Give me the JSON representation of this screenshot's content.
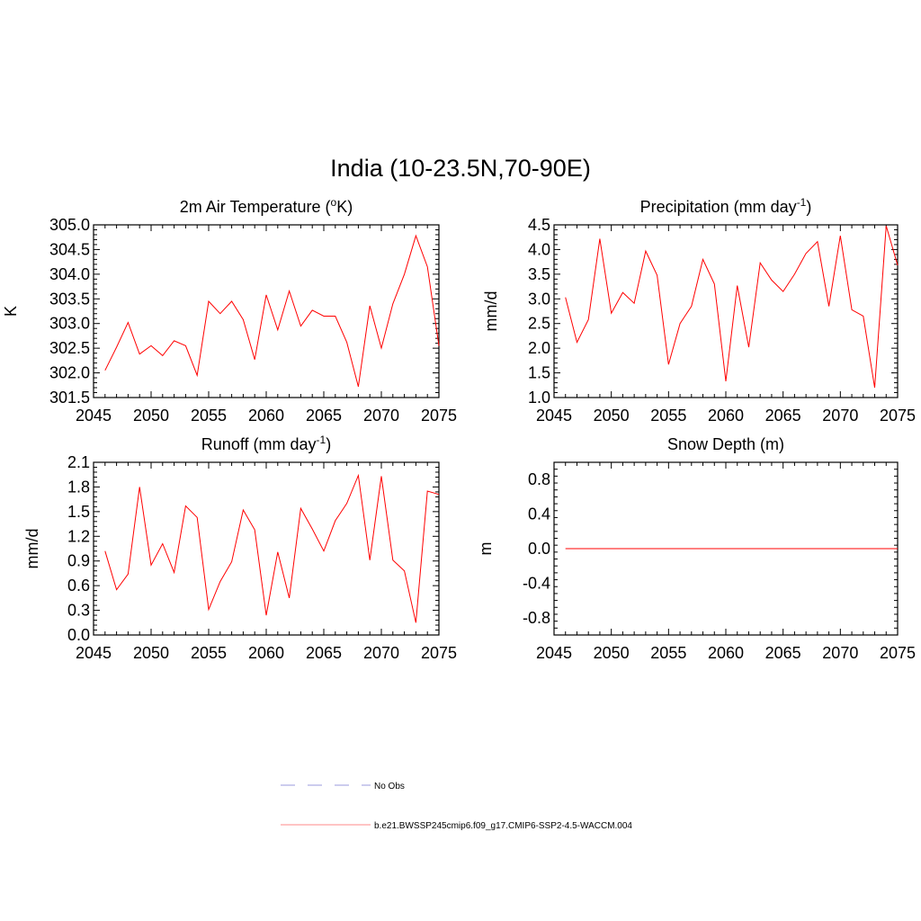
{
  "figure": {
    "title": "India (10-23.5N,70-90E)"
  },
  "legend": {
    "entries": [
      {
        "label": "No Obs",
        "color": "#9999dd",
        "dash": true
      },
      {
        "label": "b.e21.BWSSP245cmip6.f09_g17.CMIP6-SSP2-4.5-WACCM.004",
        "color": "#ff8888",
        "dash": false
      }
    ]
  },
  "chart_data": [
    {
      "type": "line",
      "title": "2m Air Temperature (",
      "title_sup": "o",
      "title_suffix": "K)",
      "ylabel": "K",
      "xlim": [
        2045,
        2075
      ],
      "ylim": [
        301.5,
        305.0
      ],
      "xticks": [
        2045,
        2050,
        2055,
        2060,
        2065,
        2070,
        2075
      ],
      "yticks": [
        "301.5",
        "302.0",
        "302.5",
        "303.0",
        "303.5",
        "304.0",
        "304.5",
        "305.0"
      ],
      "series": [
        {
          "color": "#ff0000",
          "x": [
            2046,
            2047,
            2048,
            2049,
            2050,
            2051,
            2052,
            2053,
            2054,
            2055,
            2056,
            2057,
            2058,
            2059,
            2060,
            2061,
            2062,
            2063,
            2064,
            2065,
            2066,
            2067,
            2068,
            2069,
            2070,
            2071,
            2072,
            2073,
            2074,
            2075
          ],
          "y": [
            302.05,
            302.52,
            303.02,
            302.38,
            302.55,
            302.35,
            302.65,
            302.55,
            301.95,
            303.45,
            303.2,
            303.45,
            303.08,
            302.27,
            303.58,
            302.87,
            303.66,
            302.95,
            303.27,
            303.15,
            303.15,
            302.62,
            301.72,
            303.36,
            302.5,
            303.4,
            304.0,
            304.78,
            304.15,
            302.55
          ]
        }
      ]
    },
    {
      "type": "line",
      "title": "Precipitation (mm day",
      "title_sup": "-1",
      "title_suffix": ")",
      "ylabel": "mm/d",
      "xlim": [
        2045,
        2075
      ],
      "ylim": [
        1.0,
        4.5
      ],
      "xticks": [
        2045,
        2050,
        2055,
        2060,
        2065,
        2070,
        2075
      ],
      "yticks": [
        "1.0",
        "1.5",
        "2.0",
        "2.5",
        "3.0",
        "3.5",
        "4.0",
        "4.5"
      ],
      "series": [
        {
          "color": "#ff0000",
          "x": [
            2046,
            2047,
            2048,
            2049,
            2050,
            2051,
            2052,
            2053,
            2054,
            2055,
            2056,
            2057,
            2058,
            2059,
            2060,
            2061,
            2062,
            2063,
            2064,
            2065,
            2066,
            2067,
            2068,
            2069,
            2070,
            2071,
            2072,
            2073,
            2074,
            2075
          ],
          "y": [
            3.03,
            2.12,
            2.58,
            4.22,
            2.71,
            3.13,
            2.91,
            3.97,
            3.48,
            1.67,
            2.5,
            2.85,
            3.8,
            3.3,
            1.33,
            3.27,
            2.02,
            3.73,
            3.38,
            3.15,
            3.5,
            3.92,
            4.16,
            2.85,
            4.28,
            2.78,
            2.65,
            1.2,
            4.48,
            3.68
          ]
        }
      ]
    },
    {
      "type": "line",
      "title": "Runoff (mm day",
      "title_sup": "-1",
      "title_suffix": ")",
      "ylabel": "mm/d",
      "xlim": [
        2045,
        2075
      ],
      "ylim": [
        0.0,
        2.1
      ],
      "xticks": [
        2045,
        2050,
        2055,
        2060,
        2065,
        2070,
        2075
      ],
      "yticks": [
        "0.0",
        "0.3",
        "0.6",
        "0.9",
        "1.2",
        "1.5",
        "1.8",
        "2.1"
      ],
      "series": [
        {
          "color": "#ff0000",
          "x": [
            2046,
            2047,
            2048,
            2049,
            2050,
            2051,
            2052,
            2053,
            2054,
            2055,
            2056,
            2057,
            2058,
            2059,
            2060,
            2061,
            2062,
            2063,
            2064,
            2065,
            2066,
            2067,
            2068,
            2069,
            2070,
            2071,
            2072,
            2073,
            2074,
            2075
          ],
          "y": [
            1.02,
            0.55,
            0.74,
            1.8,
            0.85,
            1.11,
            0.76,
            1.57,
            1.43,
            0.31,
            0.65,
            0.89,
            1.52,
            1.28,
            0.24,
            1.01,
            0.45,
            1.54,
            1.29,
            1.02,
            1.39,
            1.6,
            1.94,
            0.91,
            1.93,
            0.91,
            0.78,
            0.15,
            1.75,
            1.71
          ]
        }
      ]
    },
    {
      "type": "line",
      "title": "Snow Depth (m)",
      "title_sup": "",
      "title_suffix": "",
      "ylabel": "m",
      "xlim": [
        2045,
        2075
      ],
      "ylim": [
        -1.0,
        1.0
      ],
      "xticks": [
        2045,
        2050,
        2055,
        2060,
        2065,
        2070,
        2075
      ],
      "yticks": [
        "-0.8",
        "-0.4",
        "0.0",
        "0.4",
        "0.8"
      ],
      "ytick_values": [
        -0.8,
        -0.4,
        0.0,
        0.4,
        0.8
      ],
      "series": [
        {
          "color": "#ff0000",
          "x": [
            2046,
            2075
          ],
          "y": [
            0.0,
            0.0
          ]
        }
      ]
    }
  ]
}
